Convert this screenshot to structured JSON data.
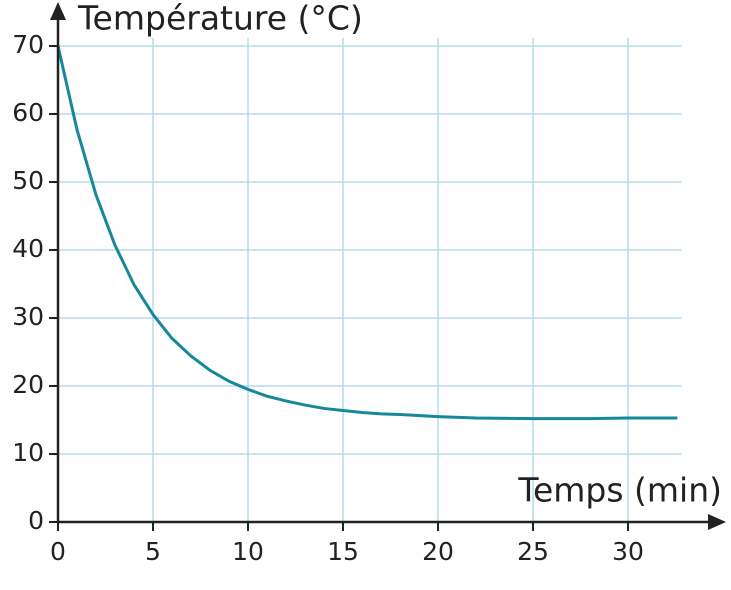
{
  "chart_data": {
    "type": "line",
    "y_label": "Température (°C)",
    "x_label": "Temps (min)",
    "x": [
      0,
      1,
      2,
      3,
      4,
      5,
      6,
      7,
      8,
      9,
      10,
      11,
      12,
      13,
      14,
      15,
      16,
      17,
      18,
      20,
      22,
      25,
      28,
      30,
      32.6
    ],
    "series": [
      {
        "color": "#17879a",
        "values": [
          70,
          57.7,
          48.1,
          40.7,
          34.9,
          30.5,
          27.0,
          24.4,
          22.3,
          20.7,
          19.5,
          18.5,
          17.8,
          17.2,
          16.7,
          16.4,
          16.1,
          15.9,
          15.8,
          15.5,
          15.3,
          15.2,
          15.2,
          15.3,
          15.3
        ]
      }
    ],
    "xlim": [
      0,
      32.8
    ],
    "ylim": [
      0,
      71.2
    ],
    "xticks": [
      0,
      5,
      10,
      15,
      20,
      25,
      30
    ],
    "yticks": [
      0,
      10,
      20,
      30,
      40,
      50,
      60,
      70
    ],
    "grid": true,
    "grid_color": "#b5dbeb",
    "axis_color": "#222222"
  }
}
